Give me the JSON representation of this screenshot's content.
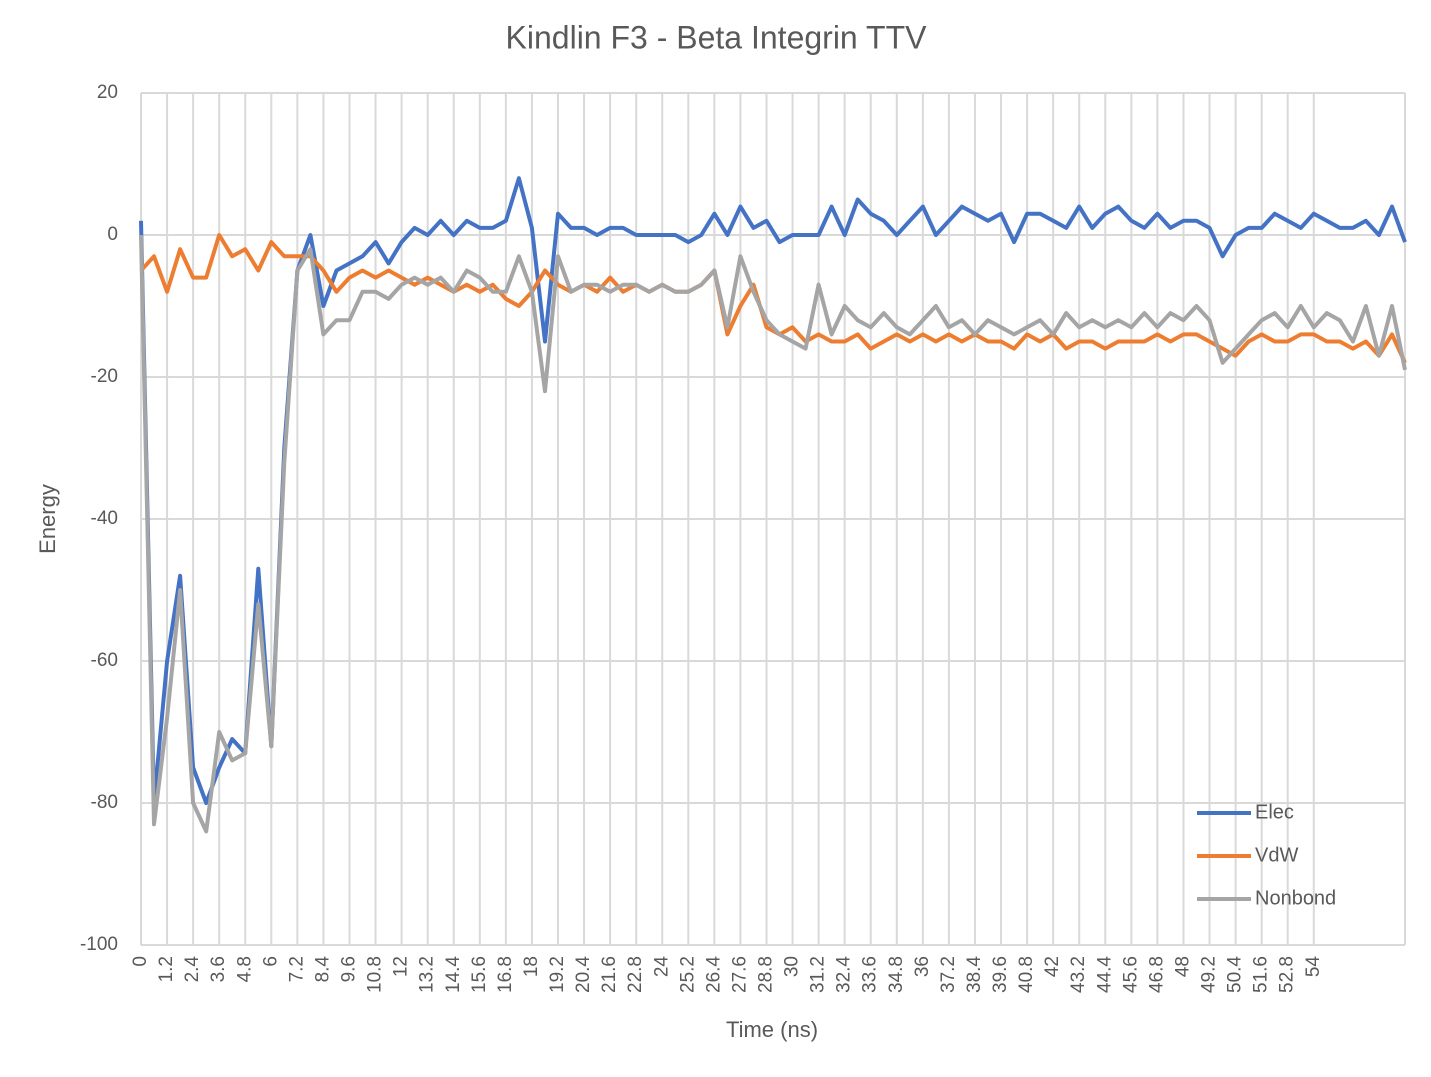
{
  "chart_data": {
    "type": "line",
    "title": "Kindlin F3 - Beta Integrin TTV",
    "x_label": "Time (ns)",
    "y_label": "Energy",
    "x": [
      0,
      0.6,
      1.2,
      1.8,
      2.4,
      3,
      3.6,
      4.2,
      4.8,
      5.4,
      6,
      6.6,
      7.2,
      7.8,
      8.4,
      9,
      9.6,
      10.2,
      10.8,
      11.4,
      12,
      12.6,
      13.2,
      13.8,
      14.4,
      15,
      15.6,
      16.2,
      16.8,
      17.4,
      18,
      18.6,
      19.2,
      19.8,
      20.4,
      21,
      21.6,
      22.2,
      22.8,
      23.4,
      24,
      24.6,
      25.2,
      25.8,
      26.4,
      27,
      27.6,
      28.2,
      28.8,
      29.4,
      30,
      30.6,
      31.2,
      31.8,
      32.4,
      33,
      33.6,
      34.2,
      34.8,
      35.4,
      36,
      36.6,
      37.2,
      37.8,
      38.4,
      39,
      39.6,
      40.2,
      40.8,
      41.4,
      42,
      42.6,
      43.2,
      43.8,
      44.4,
      45,
      45.6,
      46.2,
      46.8,
      47.4,
      48,
      48.6,
      49.2,
      49.8,
      50.4,
      51,
      51.6,
      52.2,
      52.8,
      53.4,
      54,
      54.6,
      55.2,
      55.8,
      56.4,
      57,
      57.6,
      58.2
    ],
    "series": [
      {
        "name": "Elec",
        "color": "#4472c4",
        "values": [
          2,
          -80,
          -60,
          -48,
          -75,
          -80,
          -75,
          -71,
          -73,
          -47,
          -72,
          -30,
          -5,
          0,
          -10,
          -5,
          -4,
          -3,
          -1,
          -4,
          -1,
          1,
          0,
          2,
          0,
          2,
          1,
          1,
          2,
          8,
          1,
          -15,
          3,
          1,
          1,
          0,
          1,
          1,
          0,
          0,
          0,
          0,
          -1,
          0,
          3,
          0,
          4,
          1,
          2,
          -1,
          0,
          0,
          0,
          4,
          0,
          5,
          3,
          2,
          0,
          2,
          4,
          0,
          2,
          4,
          3,
          2,
          3,
          -1,
          3,
          3,
          2,
          1,
          4,
          1,
          3,
          4,
          2,
          1,
          3,
          1,
          2,
          2,
          1,
          -3,
          0,
          1,
          1,
          3,
          2,
          1,
          3,
          2,
          1,
          1,
          2,
          0,
          4,
          -1
        ]
      },
      {
        "name": "VdW",
        "color": "#ed7d31",
        "values": [
          -5,
          -3,
          -8,
          -2,
          -6,
          -6,
          0,
          -3,
          -2,
          -5,
          -1,
          -3,
          -3,
          -3,
          -5,
          -8,
          -6,
          -5,
          -6,
          -5,
          -6,
          -7,
          -6,
          -7,
          -8,
          -7,
          -8,
          -7,
          -9,
          -10,
          -8,
          -5,
          -7,
          -8,
          -7,
          -8,
          -6,
          -8,
          -7,
          -8,
          -7,
          -8,
          -8,
          -7,
          -5,
          -14,
          -10,
          -7,
          -13,
          -14,
          -13,
          -15,
          -14,
          -15,
          -15,
          -14,
          -16,
          -15,
          -14,
          -15,
          -14,
          -15,
          -14,
          -15,
          -14,
          -15,
          -15,
          -16,
          -14,
          -15,
          -14,
          -16,
          -15,
          -15,
          -16,
          -15,
          -15,
          -15,
          -14,
          -15,
          -14,
          -14,
          -15,
          -16,
          -17,
          -15,
          -14,
          -15,
          -15,
          -14,
          -14,
          -15,
          -15,
          -16,
          -15,
          -17,
          -14,
          -18
        ]
      },
      {
        "name": "Nonbond",
        "color": "#a5a5a5",
        "values": [
          0,
          -83,
          -68,
          -50,
          -80,
          -84,
          -70,
          -74,
          -73,
          -52,
          -72,
          -32,
          -5,
          -2,
          -14,
          -12,
          -12,
          -8,
          -8,
          -9,
          -7,
          -6,
          -7,
          -6,
          -8,
          -5,
          -6,
          -8,
          -8,
          -3,
          -8,
          -22,
          -3,
          -8,
          -7,
          -7,
          -8,
          -7,
          -7,
          -8,
          -7,
          -8,
          -8,
          -7,
          -5,
          -13,
          -3,
          -8,
          -12,
          -14,
          -15,
          -16,
          -7,
          -14,
          -10,
          -12,
          -13,
          -11,
          -13,
          -14,
          -12,
          -10,
          -13,
          -12,
          -14,
          -12,
          -13,
          -14,
          -13,
          -12,
          -14,
          -11,
          -13,
          -12,
          -13,
          -12,
          -13,
          -11,
          -13,
          -11,
          -12,
          -10,
          -12,
          -18,
          -16,
          -14,
          -12,
          -11,
          -13,
          -10,
          -13,
          -11,
          -12,
          -15,
          -10,
          -17,
          -10,
          -19
        ]
      }
    ],
    "xlim": [
      0,
      58.2
    ],
    "xticks": [
      0,
      1.2,
      2.4,
      3.6,
      4.8,
      6,
      7.2,
      8.4,
      9.6,
      10.8,
      12,
      13.2,
      14.4,
      15.6,
      16.8,
      18,
      19.2,
      20.4,
      21.6,
      22.8,
      24,
      25.2,
      26.4,
      27.6,
      28.8,
      30,
      31.2,
      32.4,
      33.6,
      34.8,
      36,
      37.2,
      38.4,
      39.6,
      40.8,
      42,
      43.2,
      44.4,
      45.6,
      46.8,
      48,
      49.2,
      50.4,
      51.6,
      52.8,
      54
    ],
    "ylim": [
      -100,
      20
    ],
    "yticks": [
      -100,
      -80,
      -60,
      -40,
      -20,
      0,
      20
    ],
    "grid": true,
    "legend": "lower right"
  }
}
